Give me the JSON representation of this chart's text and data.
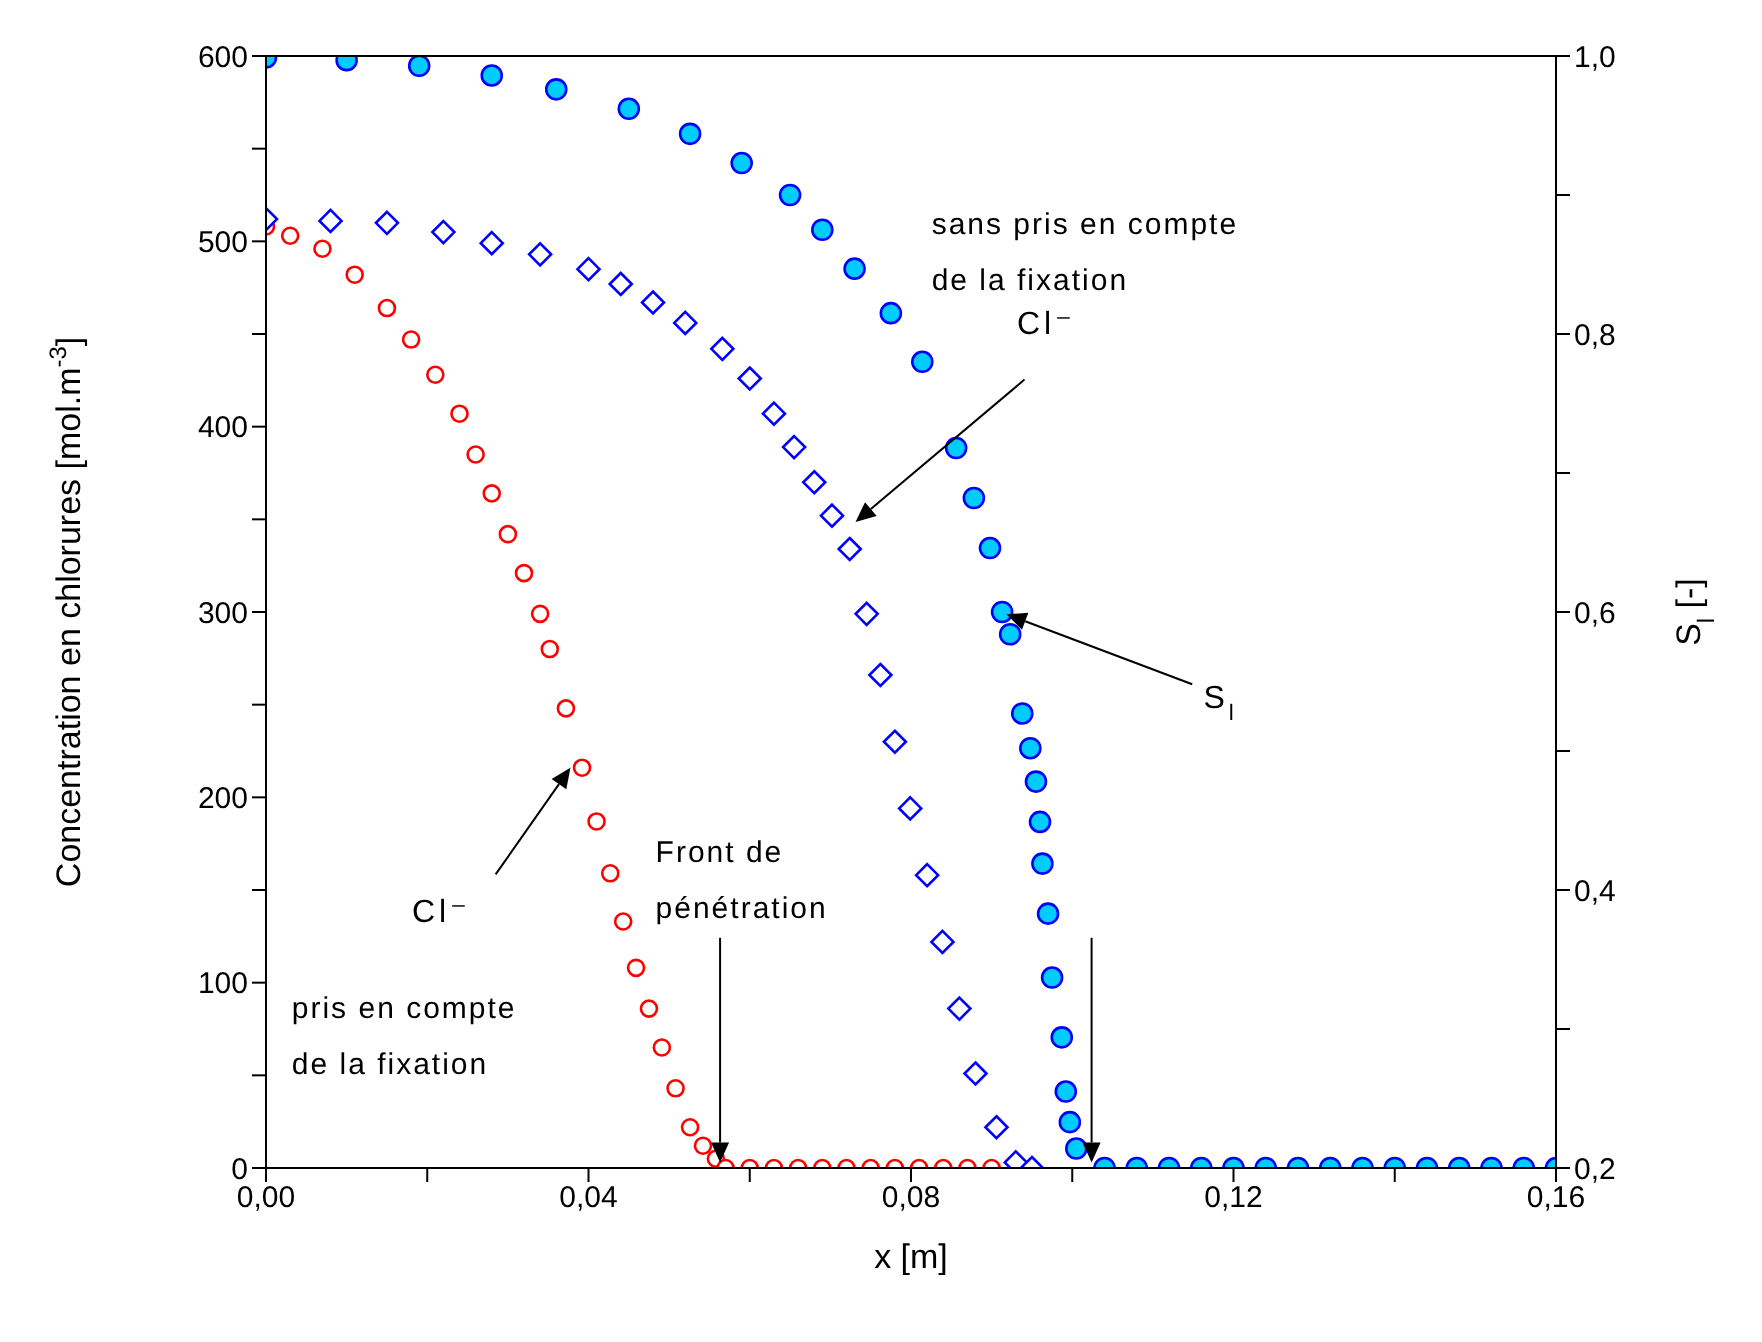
{
  "chart_data": {
    "type": "scatter",
    "xlabel": "x [m]",
    "ylabel": "Concentration en chlorures [mol.m$^{-3}$]",
    "y2label": "S$_{l}$ [-]",
    "xlim": [
      0,
      0.16
    ],
    "xticks": [
      {
        "value": 0,
        "label": "0,00"
      },
      {
        "value": 0.02,
        "label": null
      },
      {
        "value": 0.04,
        "label": "0,04"
      },
      {
        "value": 0.06,
        "label": null
      },
      {
        "value": 0.08,
        "label": "0,08"
      },
      {
        "value": 0.1,
        "label": null
      },
      {
        "value": 0.12,
        "label": "0,12"
      },
      {
        "value": 0.14,
        "label": null
      },
      {
        "value": 0.16,
        "label": "0,16"
      }
    ],
    "ylim": [
      0,
      600
    ],
    "yticks": [
      0,
      {
        "value": 50,
        "label": null
      },
      100,
      {
        "value": 150,
        "label": null
      },
      200,
      {
        "value": 250,
        "label": null
      },
      300,
      {
        "value": 350,
        "label": null
      },
      400,
      {
        "value": 450,
        "label": null
      },
      500,
      {
        "value": 550,
        "label": null
      },
      600
    ],
    "y2lim": [
      0.2,
      1.0
    ],
    "y2ticks": [
      {
        "value": 0.2,
        "label": "0,2"
      },
      {
        "value": 0.3,
        "label": null
      },
      {
        "value": 0.4,
        "label": "0,4"
      },
      {
        "value": 0.5,
        "label": null
      },
      {
        "value": 0.6,
        "label": "0,6"
      },
      {
        "value": 0.7,
        "label": null
      },
      {
        "value": 0.8,
        "label": "0,8"
      },
      {
        "value": 0.9,
        "label": null
      },
      {
        "value": 1.0,
        "label": "1,0"
      }
    ],
    "series": [
      {
        "type": "scatter",
        "color": "#ff0000",
        "marker": "circle",
        "x": [
          0,
          0.003,
          0.007,
          0.011,
          0.015,
          0.018,
          0.021,
          0.024,
          0.026,
          0.028,
          0.03,
          0.032,
          0.034,
          0.0352,
          0.0372,
          0.0392,
          0.041,
          0.0427,
          0.0443,
          0.0459,
          0.0475,
          0.0491,
          0.0508,
          0.0526,
          0.0542,
          0.0558,
          0.057,
          0.06,
          0.063,
          0.066,
          0.069,
          0.072,
          0.075,
          0.078,
          0.081,
          0.084,
          0.087,
          0.09
        ],
        "values": [
          508,
          503,
          496,
          482,
          464,
          447,
          428,
          407,
          385,
          364,
          342,
          321,
          299,
          280,
          248,
          216,
          187,
          159,
          133,
          108,
          86,
          65,
          43,
          22,
          12,
          5,
          0,
          0,
          0,
          0,
          0,
          0,
          0,
          0,
          0,
          0,
          0,
          0
        ]
      },
      {
        "type": "scatter",
        "color": "#0000ff",
        "marker": "diamond",
        "x": [
          0,
          0.008,
          0.015,
          0.022,
          0.028,
          0.034,
          0.04,
          0.044,
          0.048,
          0.052,
          0.0566,
          0.06,
          0.063,
          0.0655,
          0.068,
          0.0702,
          0.0724,
          0.0745,
          0.0762,
          0.078,
          0.0799,
          0.082,
          0.0839,
          0.086,
          0.088,
          0.0906,
          0.093,
          0.095
        ],
        "values": [
          512,
          511,
          510,
          505,
          499,
          493,
          485,
          477,
          467,
          456,
          442,
          426,
          407,
          389,
          370,
          352,
          334,
          299,
          266,
          230,
          194,
          158,
          122,
          86,
          51,
          22,
          3,
          0
        ]
      },
      {
        "type": "scatter",
        "color": "#00ccff",
        "marker": "circle",
        "axis": "y2",
        "x": [
          0,
          0.01,
          0.019,
          0.028,
          0.036,
          0.045,
          0.0526,
          0.059,
          0.065,
          0.069,
          0.073,
          0.0775,
          0.0814,
          0.0856,
          0.0878,
          0.0898,
          0.0913,
          0.0923,
          0.0938,
          0.0948,
          0.0955,
          0.096,
          0.0963,
          0.097,
          0.0975,
          0.0987,
          0.0992,
          0.0997,
          0.1005,
          0.104,
          0.108,
          0.112,
          0.116,
          0.12,
          0.124,
          0.128,
          0.132,
          0.136,
          0.14,
          0.144,
          0.148,
          0.152,
          0.156,
          0.16
        ],
        "values": [
          0.999,
          0.997,
          0.993,
          0.986,
          0.976,
          0.962,
          0.944,
          0.923,
          0.9,
          0.875,
          0.847,
          0.815,
          0.78,
          0.718,
          0.682,
          0.646,
          0.6,
          0.584,
          0.527,
          0.502,
          0.478,
          0.449,
          0.419,
          0.383,
          0.337,
          0.294,
          0.255,
          0.233,
          0.214,
          0.2,
          0.2,
          0.2,
          0.2,
          0.2,
          0.2,
          0.2,
          0.2,
          0.2,
          0.2,
          0.2,
          0.2,
          0.2,
          0.2,
          0.2
        ]
      }
    ],
    "annotations": [
      "sans pris en compte de la fixation",
      "Cl⁻",
      "S$_{l}$",
      "Cl⁻",
      "pris en compte de la fixation",
      "Front de pénétration"
    ]
  }
}
